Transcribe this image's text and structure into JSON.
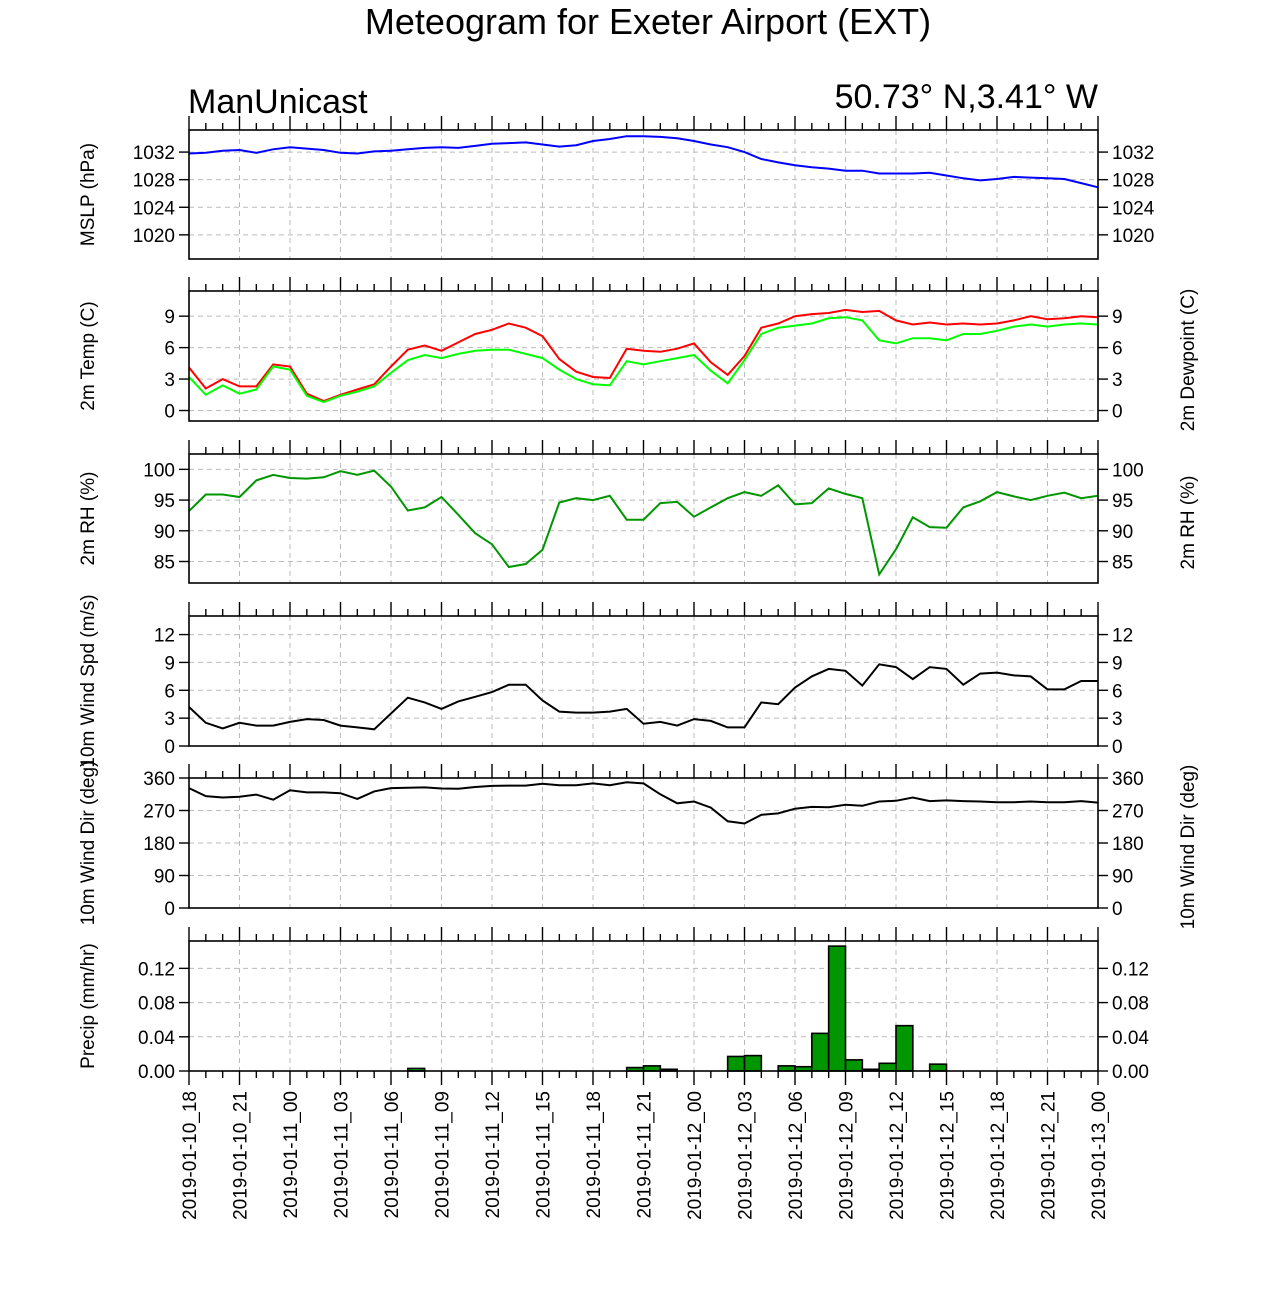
{
  "title": "Meteogram for Exeter Airport (EXT)",
  "model_label": "ManUnicast",
  "location_label": "50.73° N,3.41° W",
  "colors": {
    "mslp": "#0000ff",
    "temp": "#ff0000",
    "dewpoint": "#00ff00",
    "rh": "#009600",
    "wind_speed": "#000000",
    "wind_dir": "#000000",
    "precip_fill": "#009600",
    "precip_edge": "#000000",
    "grid": "#bbbbbb"
  },
  "time_labels": [
    "2019-01-10_18",
    "2019-01-10_21",
    "2019-01-11_00",
    "2019-01-11_03",
    "2019-01-11_06",
    "2019-01-11_09",
    "2019-01-11_12",
    "2019-01-11_15",
    "2019-01-11_18",
    "2019-01-11_21",
    "2019-01-12_00",
    "2019-01-12_03",
    "2019-01-12_06",
    "2019-01-12_09",
    "2019-01-12_12",
    "2019-01-12_15",
    "2019-01-12_18",
    "2019-01-12_21",
    "2019-01-13_00"
  ],
  "chart_data": [
    {
      "type": "line",
      "ylabel": "MSLP (hPa)",
      "ylim": [
        1016.5,
        1035.2
      ],
      "ticks": [
        1020,
        1024,
        1028,
        1032
      ],
      "tick_labels": [
        "1020",
        "1024",
        "1028",
        "1032"
      ],
      "x_hours": [
        0,
        1,
        2,
        3,
        4,
        5,
        6,
        7,
        8,
        9,
        10,
        11,
        12,
        13,
        14,
        15,
        16,
        17,
        18,
        19,
        20,
        21,
        22,
        23,
        24,
        25,
        26,
        27,
        28,
        29,
        30,
        31,
        32,
        33,
        34,
        35,
        36,
        37,
        38,
        39,
        40,
        41,
        42,
        43,
        44,
        45,
        46,
        47,
        48,
        49,
        50,
        51,
        52,
        53,
        54
      ],
      "series": [
        {
          "values": [
            1031.8,
            1031.9,
            1032.2,
            1032.3,
            1031.9,
            1032.4,
            1032.7,
            1032.5,
            1032.3,
            1031.9,
            1031.8,
            1032.1,
            1032.2,
            1032.4,
            1032.6,
            1032.7,
            1032.6,
            1032.9,
            1033.2,
            1033.3,
            1033.4,
            1033.1,
            1032.8,
            1033.0,
            1033.6,
            1033.9,
            1034.3,
            1034.3,
            1034.2,
            1034.0,
            1033.6,
            1033.1,
            1032.7,
            1032.0,
            1031.0,
            1030.5,
            1030.1,
            1029.8,
            1029.6,
            1029.3,
            1029.3,
            1028.9,
            1028.9,
            1028.9,
            1029.0,
            1028.6,
            1028.2,
            1027.9,
            1028.1,
            1028.4,
            1028.3,
            1028.2,
            1028.1,
            1027.5,
            1026.9
          ]
        }
      ]
    },
    {
      "type": "line",
      "ylabel": "2m Temp (C)",
      "ylabel_right": "2m Dewpoint (C)",
      "ylim": [
        -1,
        11.4
      ],
      "ticks": [
        0,
        3,
        6,
        9
      ],
      "tick_labels": [
        "0",
        "3",
        "6",
        "9"
      ],
      "x_hours": [
        0,
        1,
        2,
        3,
        4,
        5,
        6,
        7,
        8,
        9,
        10,
        11,
        12,
        13,
        14,
        15,
        16,
        17,
        18,
        19,
        20,
        21,
        22,
        23,
        24,
        25,
        26,
        27,
        28,
        29,
        30,
        31,
        32,
        33,
        34,
        35,
        36,
        37,
        38,
        39,
        40,
        41,
        42,
        43,
        44,
        45,
        46,
        47,
        48,
        49,
        50,
        51,
        52,
        53,
        54
      ],
      "series": [
        {
          "values": [
            4.1,
            2.1,
            3.0,
            2.3,
            2.3,
            4.4,
            4.2,
            1.6,
            0.9,
            1.5,
            2.0,
            2.5,
            4.2,
            5.8,
            6.2,
            5.7,
            6.5,
            7.3,
            7.7,
            8.3,
            7.9,
            7.1,
            4.9,
            3.7,
            3.2,
            3.1,
            5.9,
            5.7,
            5.6,
            5.9,
            6.4,
            4.6,
            3.4,
            5.2,
            7.9,
            8.3,
            9.0,
            9.2,
            9.3,
            9.6,
            9.4,
            9.5,
            8.6,
            8.2,
            8.4,
            8.2,
            8.3,
            8.2,
            8.3,
            8.6,
            9.0,
            8.7,
            8.8,
            9.0,
            8.9
          ]
        },
        {
          "values": [
            3.2,
            1.5,
            2.4,
            1.6,
            2.0,
            4.2,
            3.9,
            1.4,
            0.8,
            1.4,
            1.8,
            2.3,
            3.6,
            4.8,
            5.3,
            5.0,
            5.4,
            5.7,
            5.8,
            5.8,
            5.4,
            5.0,
            3.9,
            3.0,
            2.5,
            2.4,
            4.7,
            4.4,
            4.7,
            5.0,
            5.3,
            3.8,
            2.6,
            4.8,
            7.3,
            7.9,
            8.1,
            8.3,
            8.8,
            8.9,
            8.6,
            6.7,
            6.4,
            6.9,
            6.9,
            6.7,
            7.3,
            7.3,
            7.6,
            8.0,
            8.2,
            8.0,
            8.2,
            8.3,
            8.2
          ]
        }
      ]
    },
    {
      "type": "line",
      "ylabel": "2m RH (%)",
      "ylim": [
        81.5,
        102.5
      ],
      "ticks": [
        85,
        90,
        95,
        100
      ],
      "tick_labels": [
        "85",
        "90",
        "95",
        "100"
      ],
      "x_hours": [
        0,
        1,
        2,
        3,
        4,
        5,
        6,
        7,
        8,
        9,
        10,
        11,
        12,
        13,
        14,
        15,
        16,
        17,
        18,
        19,
        20,
        21,
        22,
        23,
        24,
        25,
        26,
        27,
        28,
        29,
        30,
        31,
        32,
        33,
        34,
        35,
        36,
        37,
        38,
        39,
        40,
        41,
        42,
        43,
        44,
        45,
        46,
        47,
        48,
        49,
        50,
        51,
        52,
        53,
        54
      ],
      "series": [
        {
          "values": [
            93.2,
            95.9,
            95.9,
            95.5,
            98.2,
            99.1,
            98.6,
            98.5,
            98.7,
            99.7,
            99.1,
            99.8,
            97.2,
            93.3,
            93.8,
            95.5,
            92.6,
            89.6,
            87.8,
            84.1,
            84.6,
            86.9,
            94.6,
            95.3,
            95.0,
            95.7,
            91.8,
            91.8,
            94.5,
            94.7,
            92.3,
            93.8,
            95.3,
            96.3,
            95.7,
            97.4,
            94.3,
            94.5,
            96.9,
            96.0,
            95.3,
            82.9,
            87.0,
            92.2,
            90.6,
            90.5,
            93.8,
            94.8,
            96.3,
            95.6,
            95.0,
            95.7,
            96.2,
            95.3,
            95.7
          ]
        }
      ]
    },
    {
      "type": "line",
      "ylabel": "10m Wind Spd (m/s)",
      "ylim": [
        0,
        14
      ],
      "ticks": [
        0,
        3,
        6,
        9,
        12
      ],
      "tick_labels": [
        "0",
        "3",
        "6",
        "9",
        "12"
      ],
      "x_hours": [
        0,
        1,
        2,
        3,
        4,
        5,
        6,
        7,
        8,
        9,
        10,
        11,
        12,
        13,
        14,
        15,
        16,
        17,
        18,
        19,
        20,
        21,
        22,
        23,
        24,
        25,
        26,
        27,
        28,
        29,
        30,
        31,
        32,
        33,
        34,
        35,
        36,
        37,
        38,
        39,
        40,
        41,
        42,
        43,
        44,
        45,
        46,
        47,
        48,
        49,
        50,
        51,
        52,
        53,
        54
      ],
      "series": [
        {
          "values": [
            4.2,
            2.5,
            1.9,
            2.5,
            2.2,
            2.2,
            2.6,
            2.9,
            2.8,
            2.2,
            2.0,
            1.8,
            3.5,
            5.2,
            4.7,
            4.0,
            4.8,
            5.3,
            5.8,
            6.6,
            6.6,
            4.9,
            3.7,
            3.6,
            3.6,
            3.7,
            4.0,
            2.4,
            2.6,
            2.2,
            2.9,
            2.7,
            2.0,
            2.0,
            4.7,
            4.5,
            6.3,
            7.5,
            8.3,
            8.1,
            6.5,
            8.8,
            8.5,
            7.2,
            8.5,
            8.3,
            6.6,
            7.8,
            7.9,
            7.6,
            7.5,
            6.1,
            6.1,
            7.0,
            7.0
          ]
        }
      ]
    },
    {
      "type": "line",
      "ylabel": "10m Wind Dir (deg)",
      "ylim": [
        0,
        360
      ],
      "ticks": [
        0,
        90,
        180,
        270,
        360
      ],
      "tick_labels": [
        "0",
        "90",
        "180",
        "270",
        "360"
      ],
      "x_hours": [
        0,
        1,
        2,
        3,
        4,
        5,
        6,
        7,
        8,
        9,
        10,
        11,
        12,
        13,
        14,
        15,
        16,
        17,
        18,
        19,
        20,
        21,
        22,
        23,
        24,
        25,
        26,
        27,
        28,
        29,
        30,
        31,
        32,
        33,
        34,
        35,
        36,
        37,
        38,
        39,
        40,
        41,
        42,
        43,
        44,
        45,
        46,
        47,
        48,
        49,
        50,
        51,
        52,
        53,
        54
      ],
      "series": [
        {
          "values": [
            332,
            310,
            306,
            308,
            314,
            300,
            326,
            320,
            320,
            318,
            302,
            323,
            332,
            333,
            334,
            331,
            330,
            335,
            338,
            339,
            339,
            344,
            340,
            340,
            345,
            340,
            348,
            345,
            315,
            290,
            295,
            278,
            240,
            234,
            258,
            262,
            275,
            280,
            279,
            286,
            283,
            295,
            297,
            306,
            296,
            298,
            296,
            295,
            293,
            293,
            295,
            293,
            293,
            296,
            292
          ]
        }
      ]
    },
    {
      "type": "bar",
      "ylabel": "Precip (mm/hr)",
      "ylim": [
        0,
        0.152
      ],
      "ticks": [
        0.0,
        0.04,
        0.08,
        0.12
      ],
      "tick_labels": [
        "0.00",
        "0.04",
        "0.08",
        "0.12"
      ],
      "x_hours": [
        0,
        1,
        2,
        3,
        4,
        5,
        6,
        7,
        8,
        9,
        10,
        11,
        12,
        13,
        14,
        15,
        16,
        17,
        18,
        19,
        20,
        21,
        22,
        23,
        24,
        25,
        26,
        27,
        28,
        29,
        30,
        31,
        32,
        33,
        34,
        35,
        36,
        37,
        38,
        39,
        40,
        41,
        42,
        43,
        44,
        45,
        46,
        47,
        48,
        49,
        50,
        51,
        52,
        53
      ],
      "values": [
        0,
        0,
        0,
        0,
        0,
        0,
        0,
        0,
        0,
        0,
        0,
        0,
        0,
        0.003,
        0,
        0,
        0,
        0,
        0,
        0,
        0,
        0,
        0,
        0,
        0,
        0,
        0.004,
        0.006,
        0.002,
        0,
        0,
        0,
        0.017,
        0.018,
        0,
        0.006,
        0.005,
        0.044,
        0.146,
        0.013,
        0.002,
        0.009,
        0.053,
        0,
        0.008,
        0,
        0,
        0,
        0,
        0,
        0,
        0,
        0,
        0
      ]
    }
  ]
}
